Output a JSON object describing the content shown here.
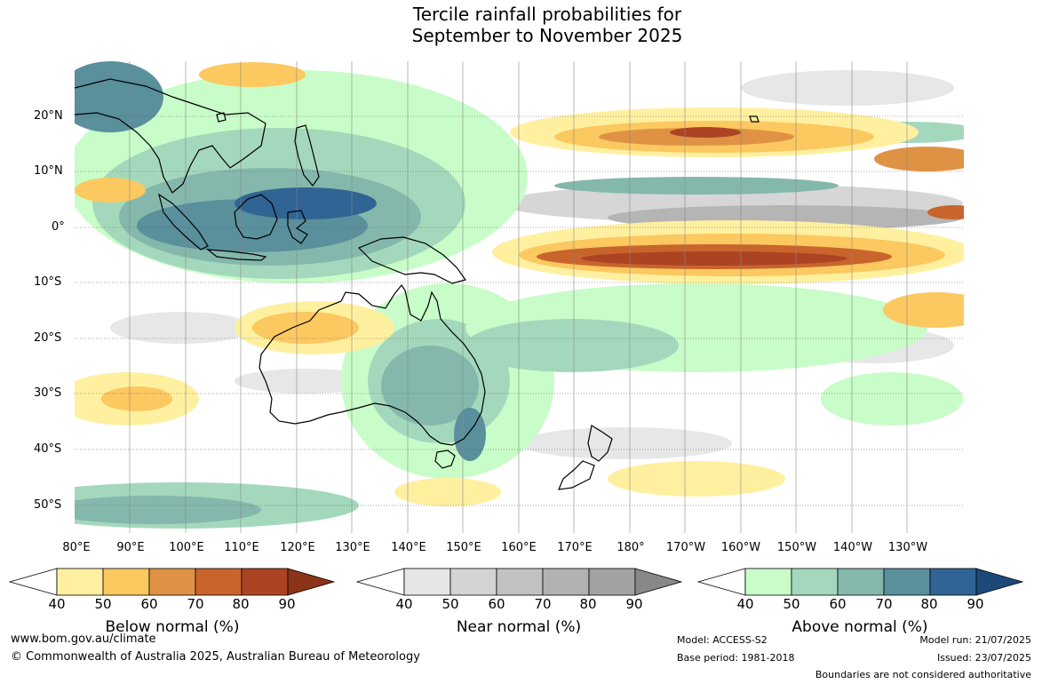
{
  "title": {
    "line1": "Tercile rainfall probabilities for",
    "line2": "September to November 2025"
  },
  "map": {
    "lat_labels": [
      "20°N",
      "10°N",
      "0°",
      "10°S",
      "20°S",
      "30°S",
      "40°S",
      "50°S"
    ],
    "lon_labels": [
      "80°E",
      "90°E",
      "100°E",
      "110°E",
      "120°E",
      "130°E",
      "140°E",
      "150°E",
      "160°E",
      "170°E",
      "180°",
      "170°W",
      "160°W",
      "150°W",
      "140°W",
      "130°W"
    ]
  },
  "legends": {
    "below": {
      "title": "Below normal (%)",
      "ticks": [
        "40",
        "50",
        "60",
        "70",
        "80",
        "90"
      ],
      "colors": [
        "#fff0a0",
        "#fcc860",
        "#df9244",
        "#c9642c",
        "#ac4424",
        "#8c3418"
      ]
    },
    "near": {
      "title": "Near normal (%)",
      "ticks": [
        "40",
        "50",
        "60",
        "70",
        "80",
        "90"
      ],
      "colors": [
        "#e6e6e6",
        "#d4d4d4",
        "#c2c2c2",
        "#b2b2b2",
        "#a2a2a2",
        "#888888"
      ]
    },
    "above": {
      "title": "Above normal (%)",
      "ticks": [
        "40",
        "50",
        "60",
        "70",
        "80",
        "90"
      ],
      "colors": [
        "#c8fcc8",
        "#a4d8bc",
        "#84b8ac",
        "#5a8f9c",
        "#306494",
        "#1c4a78"
      ]
    }
  },
  "footer": {
    "website": "www.bom.gov.au/climate",
    "copyright": "© Commonwealth of Australia 2025, Australian Bureau of Meteorology",
    "model": "Model: ACCESS-S2",
    "base_period": "Base period: 1981-2018",
    "model_run": "Model run: 21/07/2025",
    "issued": "Issued: 23/07/2025",
    "disclaimer": "Boundaries are not considered authoritative"
  }
}
